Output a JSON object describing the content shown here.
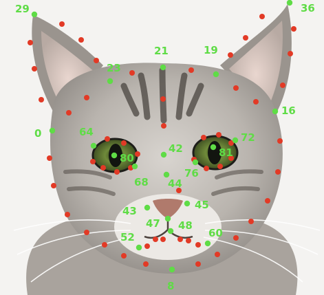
{
  "colors": {
    "landmark_numbered": "#5fdc46",
    "landmark_plain": "#e23a26",
    "label_text": "#5fdc46"
  },
  "landmark_labels": [
    {
      "id": "29",
      "text": "29"
    },
    {
      "id": "36",
      "text": "36"
    },
    {
      "id": "21",
      "text": "21"
    },
    {
      "id": "19",
      "text": "19"
    },
    {
      "id": "23",
      "text": "23"
    },
    {
      "id": "16",
      "text": "16"
    },
    {
      "id": "0",
      "text": "0"
    },
    {
      "id": "64",
      "text": "64"
    },
    {
      "id": "72",
      "text": "72"
    },
    {
      "id": "42",
      "text": "42"
    },
    {
      "id": "80",
      "text": "80"
    },
    {
      "id": "81",
      "text": "81"
    },
    {
      "id": "76",
      "text": "76"
    },
    {
      "id": "68",
      "text": "68"
    },
    {
      "id": "44",
      "text": "44"
    },
    {
      "id": "43",
      "text": "43"
    },
    {
      "id": "45",
      "text": "45"
    },
    {
      "id": "47",
      "text": "47"
    },
    {
      "id": "48",
      "text": "48"
    },
    {
      "id": "52",
      "text": "52"
    },
    {
      "id": "60",
      "text": "60"
    },
    {
      "id": "8",
      "text": "8"
    }
  ]
}
